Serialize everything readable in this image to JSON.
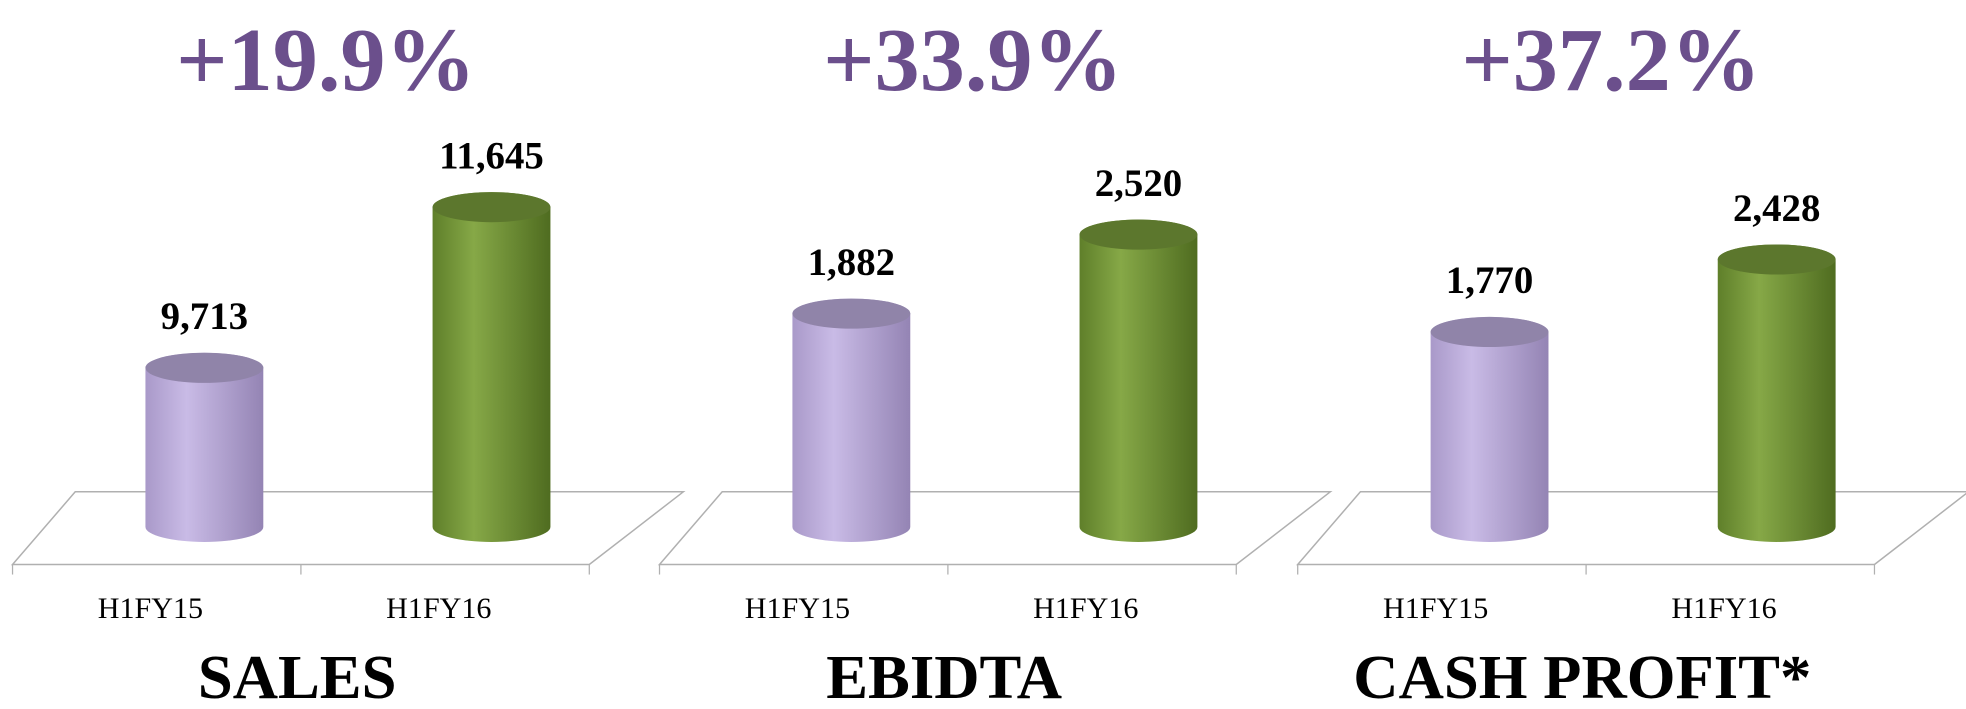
{
  "chart_data": [
    {
      "type": "bar",
      "title": "SALES",
      "annotation": "+19.9%",
      "categories": [
        "H1FY15",
        "H1FY16"
      ],
      "values": [
        9713,
        11645
      ],
      "value_labels": [
        "9,713",
        "11,645"
      ],
      "colors": [
        "#b9a9d9",
        "#76983a"
      ],
      "ylim": [
        7800,
        12700
      ]
    },
    {
      "type": "bar",
      "title": "EBIDTA",
      "annotation": "+33.9%",
      "categories": [
        "H1FY15",
        "H1FY16"
      ],
      "values": [
        1882,
        2520
      ],
      "value_labels": [
        "1,882",
        "2,520"
      ],
      "colors": [
        "#b9a9d9",
        "#76983a"
      ],
      "ylim": [
        160,
        3450
      ]
    },
    {
      "type": "bar",
      "title": "CASH PROFIT*",
      "annotation": "+37.2%",
      "categories": [
        "H1FY15",
        "H1FY16"
      ],
      "values": [
        1770,
        2428
      ],
      "value_labels": [
        "1,770",
        "2,428"
      ],
      "colors": [
        "#b9a9d9",
        "#76983a"
      ],
      "ylim": [
        0,
        3700
      ]
    }
  ]
}
